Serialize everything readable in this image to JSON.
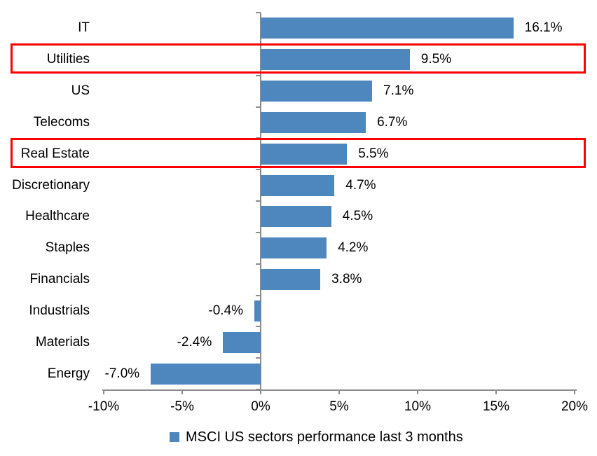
{
  "chart_data": {
    "type": "bar",
    "orientation": "horizontal",
    "legend": "MSCI US sectors performance last 3 months",
    "legend_position": "bottom-center",
    "categories": [
      "IT",
      "Utilities",
      "US",
      "Telecoms",
      "Real Estate",
      "Discretionary",
      "Healthcare",
      "Staples",
      "Financials",
      "Industrials",
      "Materials",
      "Energy"
    ],
    "values": [
      16.1,
      9.5,
      7.1,
      6.7,
      5.5,
      4.7,
      4.5,
      4.2,
      3.8,
      -0.4,
      -2.4,
      -7.0
    ],
    "value_labels": [
      "16.1%",
      "9.5%",
      "7.1%",
      "6.7%",
      "5.5%",
      "4.7%",
      "4.5%",
      "4.2%",
      "3.8%",
      "-0.4%",
      "-2.4%",
      "-7.0%"
    ],
    "highlighted_categories": [
      "Utilities",
      "Real Estate"
    ],
    "xlim": [
      -10,
      20
    ],
    "x_tick_values": [
      -10,
      -5,
      0,
      5,
      10,
      15,
      20
    ],
    "x_tick_labels": [
      "-10%",
      "-5%",
      "0%",
      "5%",
      "10%",
      "15%",
      "20%"
    ],
    "grid": "off",
    "colors": {
      "bar": "#4E86BE",
      "highlight_box": "#FF0000",
      "axis": "#8C8C8C",
      "text": "#000000",
      "background": "#FFFFFF"
    }
  }
}
